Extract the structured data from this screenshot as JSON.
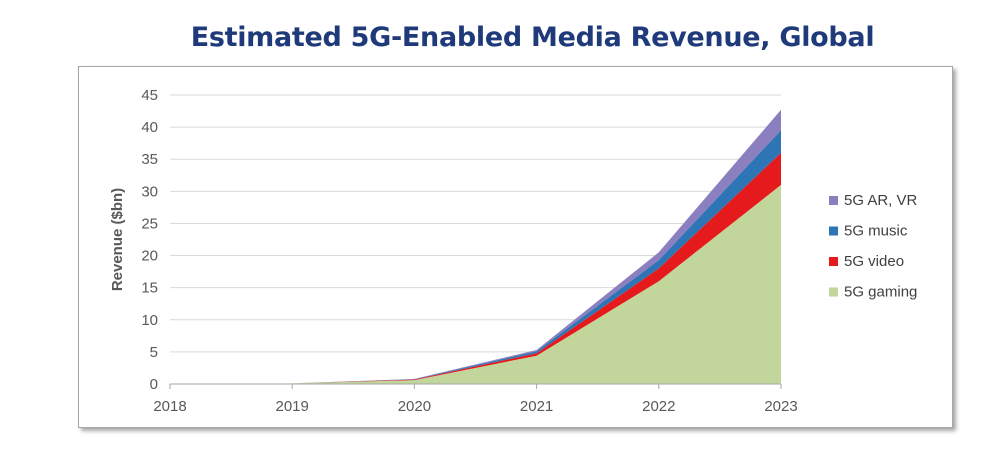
{
  "chart_data": {
    "type": "area",
    "title": "Estimated 5G-Enabled Media Revenue, Global",
    "ylabel": "Revenue ($bn)",
    "xlabel": "",
    "ylim": [
      0,
      45
    ],
    "yticks": [
      0,
      5,
      10,
      15,
      20,
      25,
      30,
      35,
      40,
      45
    ],
    "categories": [
      "2018",
      "2019",
      "2020",
      "2021",
      "2022",
      "2023"
    ],
    "grid": true,
    "stacked": true,
    "legend": "right",
    "series": [
      {
        "name": "5G gaming",
        "color": "#c2d69b",
        "values": [
          0,
          0.1,
          0.6,
          4.4,
          16,
          31
        ]
      },
      {
        "name": "5G video",
        "color": "#e41a1c",
        "values": [
          0,
          0,
          0.1,
          0.4,
          2.0,
          5.0
        ]
      },
      {
        "name": "5G music",
        "color": "#2e75b6",
        "values": [
          0,
          0,
          0.05,
          0.3,
          1.3,
          3.5
        ]
      },
      {
        "name": "5G AR, VR",
        "color": "#8b7fc0",
        "values": [
          0,
          0,
          0.05,
          0.2,
          1.2,
          3.2
        ]
      }
    ]
  }
}
